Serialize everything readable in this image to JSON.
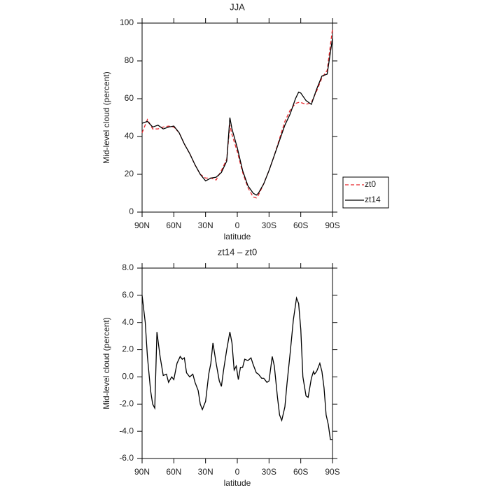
{
  "chart_data": [
    {
      "type": "line",
      "title": "JJA",
      "xlabel": "latitude",
      "ylabel": "Mid-level cloud (percent)",
      "x": [
        90,
        85,
        80,
        75,
        70,
        65,
        60,
        55,
        50,
        45,
        40,
        35,
        30,
        25,
        20,
        15,
        10,
        7,
        5,
        0,
        -5,
        -10,
        -15,
        -18,
        -20,
        -25,
        -30,
        -35,
        -40,
        -45,
        -50,
        -55,
        -58,
        -60,
        -65,
        -70,
        -75,
        -80,
        -85,
        -90
      ],
      "xlim": [
        90,
        -90
      ],
      "xticks": [
        {
          "value": 90,
          "label": "90N"
        },
        {
          "value": 60,
          "label": "60N"
        },
        {
          "value": 30,
          "label": "30N"
        },
        0,
        {
          "value": -30,
          "label": "30S"
        },
        {
          "value": -60,
          "label": "60S"
        },
        {
          "value": -90,
          "label": "90S"
        }
      ],
      "ylim": [
        0,
        100
      ],
      "yticks": [
        0,
        20,
        40,
        60,
        80,
        100
      ],
      "legend": "right",
      "series": [
        {
          "name": "zt0",
          "color": "#e8262b",
          "dash": true,
          "values": [
            42,
            49,
            44,
            44,
            45,
            45.5,
            45,
            42,
            36,
            31,
            25,
            20,
            18,
            18,
            17,
            22,
            28,
            46,
            41,
            32,
            21,
            13,
            8,
            7.5,
            9,
            15,
            22,
            30,
            39,
            48,
            54,
            57.5,
            58,
            58,
            57,
            58,
            64,
            71,
            75,
            97
          ]
        },
        {
          "name": "zt14",
          "color": "#000000",
          "dash": false,
          "values": [
            47,
            48,
            45,
            46,
            44,
            45,
            45.5,
            42,
            36,
            31,
            25,
            20,
            16.5,
            18,
            18.5,
            21,
            27,
            50,
            44,
            34,
            22,
            14,
            10,
            9,
            10,
            15,
            22,
            30,
            38,
            46,
            52,
            60,
            63.5,
            63,
            59,
            57,
            65,
            72,
            73,
            92
          ]
        }
      ]
    },
    {
      "type": "line",
      "title": "zt14 – zt0",
      "xlabel": "latitude",
      "ylabel": "Mid-level cloud (percent)",
      "x": [
        90,
        87,
        85,
        82,
        80,
        78,
        76,
        73,
        70,
        67,
        65,
        62,
        60,
        57,
        54,
        52,
        50,
        48,
        45,
        42,
        40,
        37,
        35,
        33,
        30,
        27,
        25,
        23,
        20,
        17,
        15,
        13,
        10,
        7,
        5,
        3,
        1,
        -1,
        -3,
        -5,
        -7,
        -10,
        -13,
        -15,
        -18,
        -20,
        -23,
        -25,
        -28,
        -30,
        -33,
        -35,
        -38,
        -40,
        -42,
        -45,
        -47,
        -50,
        -53,
        -56,
        -58,
        -60,
        -62,
        -65,
        -67,
        -70,
        -72,
        -73,
        -75,
        -77,
        -78,
        -80,
        -82,
        -84,
        -86,
        -88,
        -90
      ],
      "xlim": [
        90,
        -90
      ],
      "xticks": [
        {
          "value": 90,
          "label": "90N"
        },
        {
          "value": 60,
          "label": "60N"
        },
        {
          "value": 30,
          "label": "30N"
        },
        0,
        {
          "value": -30,
          "label": "30S"
        },
        {
          "value": -60,
          "label": "60S"
        },
        {
          "value": -90,
          "label": "90S"
        }
      ],
      "ylim": [
        -6,
        8
      ],
      "yticks": [
        {
          "value": -6,
          "label": "-6.0"
        },
        {
          "value": -4,
          "label": "-4.0"
        },
        {
          "value": -2,
          "label": "-2.0"
        },
        {
          "value": 0,
          "label": "0.0"
        },
        {
          "value": 2,
          "label": "2.0"
        },
        {
          "value": 4,
          "label": "4.0"
        },
        {
          "value": 6,
          "label": "6.0"
        },
        {
          "value": 8,
          "label": "8.0"
        }
      ],
      "series": [
        {
          "color": "#000000",
          "values": [
            6.0,
            4,
            1.5,
            -1,
            -2.0,
            -2.3,
            3.3,
            1.5,
            0.1,
            0.2,
            -0.4,
            0.0,
            -0.2,
            1.0,
            1.5,
            1.3,
            1.4,
            0.3,
            0,
            0.2,
            -0.4,
            -1.0,
            -2.0,
            -2.4,
            -1.8,
            0.2,
            1.0,
            2.5,
            1.0,
            -0.3,
            -0.7,
            0.5,
            2.0,
            3.3,
            2.5,
            0.5,
            0.8,
            -0.2,
            0.7,
            0.7,
            1.3,
            1.2,
            1.4,
            0.9,
            0.3,
            0.2,
            -0.1,
            -0.1,
            -0.4,
            -0.3,
            1.5,
            0.8,
            -1.5,
            -2.8,
            -3.2,
            -2.2,
            -0.5,
            1.8,
            4.2,
            5.8,
            5.4,
            3.5,
            0.0,
            -1.4,
            -1.5,
            -0.1,
            0.4,
            0.2,
            0.4,
            0.8,
            1.0,
            0.4,
            -0.8,
            -2.8,
            -3.5,
            -4.6,
            -4.6
          ]
        }
      ]
    }
  ]
}
